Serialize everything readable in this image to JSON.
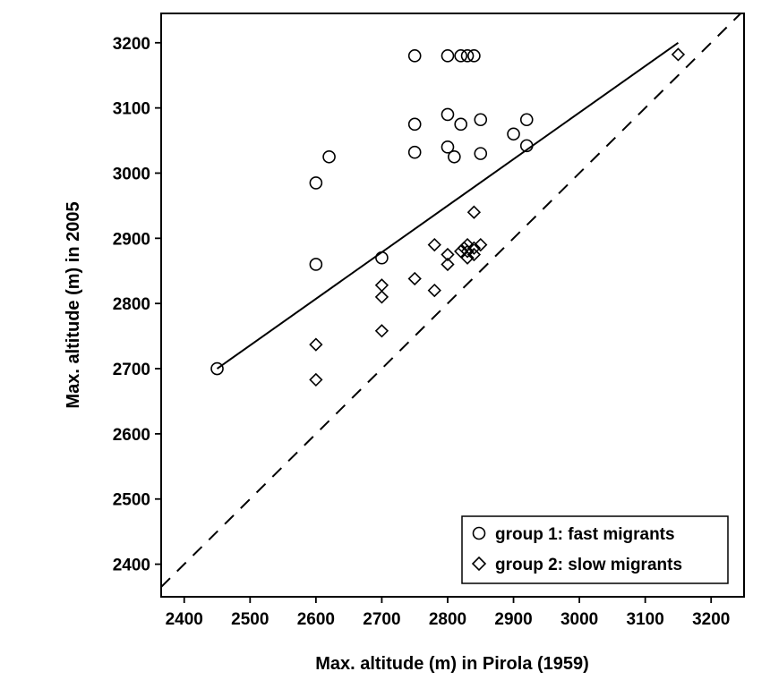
{
  "chart_data": {
    "type": "scatter",
    "title": "",
    "xlabel": "Max. altitude (m) in Pirola (1959)",
    "ylabel": "Max. altitude (m) in 2005",
    "xlim": [
      2365,
      3250
    ],
    "ylim": [
      2350,
      3245
    ],
    "x_ticks": [
      "2400",
      "2500",
      "2600",
      "2700",
      "2800",
      "2900",
      "3000",
      "3100",
      "3200"
    ],
    "y_ticks": [
      "2400",
      "2500",
      "2600",
      "2700",
      "2800",
      "2900",
      "3000",
      "3100",
      "3200"
    ],
    "grid": false,
    "legend_position": "bottom-right",
    "series": [
      {
        "name": "group 1: fast migrants",
        "marker": "circle",
        "points": [
          [
            2450,
            2700
          ],
          [
            2600,
            2860
          ],
          [
            2600,
            2985
          ],
          [
            2620,
            3025
          ],
          [
            2750,
            3180
          ],
          [
            2750,
            3075
          ],
          [
            2750,
            3032
          ],
          [
            2800,
            3180
          ],
          [
            2820,
            3180
          ],
          [
            2830,
            3180
          ],
          [
            2840,
            3180
          ],
          [
            2800,
            3090
          ],
          [
            2820,
            3075
          ],
          [
            2850,
            3082
          ],
          [
            2800,
            3040
          ],
          [
            2810,
            3025
          ],
          [
            2850,
            3030
          ],
          [
            2900,
            3060
          ],
          [
            2920,
            3082
          ],
          [
            2920,
            3042
          ],
          [
            2700,
            2870
          ]
        ]
      },
      {
        "name": "group 2: slow migrants",
        "marker": "diamond",
        "points": [
          [
            2600,
            2737
          ],
          [
            2600,
            2683
          ],
          [
            2700,
            2828
          ],
          [
            2700,
            2810
          ],
          [
            2700,
            2758
          ],
          [
            2750,
            2838
          ],
          [
            2780,
            2890
          ],
          [
            2780,
            2820
          ],
          [
            2800,
            2875
          ],
          [
            2800,
            2860
          ],
          [
            2820,
            2880
          ],
          [
            2825,
            2885
          ],
          [
            2830,
            2890
          ],
          [
            2830,
            2880
          ],
          [
            2830,
            2870
          ],
          [
            2840,
            2940
          ],
          [
            2840,
            2885
          ],
          [
            2840,
            2875
          ],
          [
            2850,
            2890
          ],
          [
            3150,
            3182
          ]
        ]
      }
    ],
    "lines": [
      {
        "name": "regression",
        "style": "solid",
        "from": [
          2450,
          2700
        ],
        "to": [
          3150,
          3200
        ]
      },
      {
        "name": "1:1",
        "style": "dashed",
        "from": [
          2365,
          2365
        ],
        "to": [
          3250,
          3250
        ]
      }
    ]
  }
}
